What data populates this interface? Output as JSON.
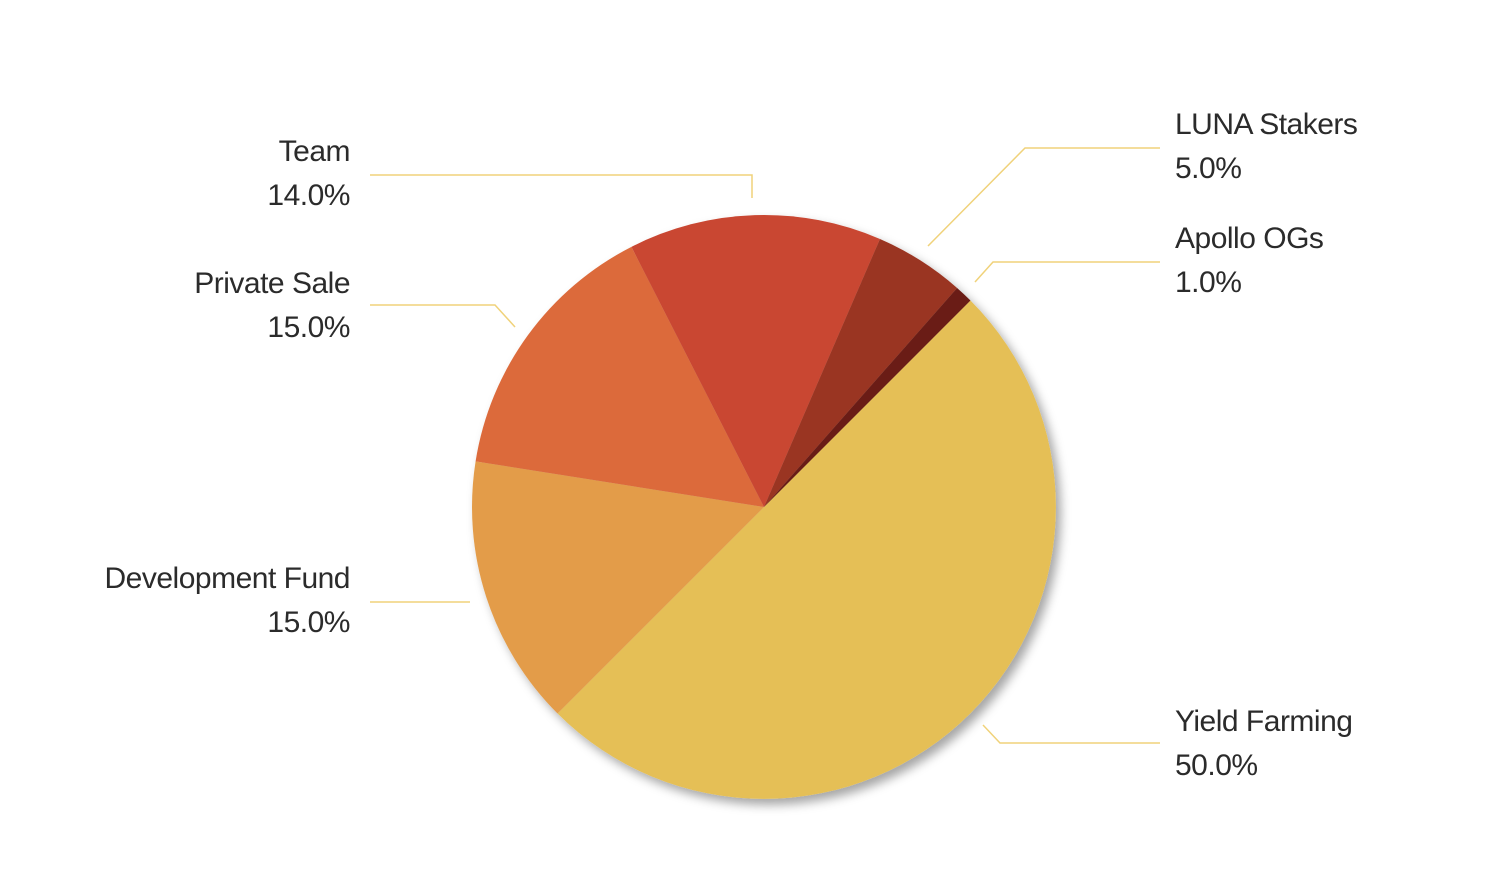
{
  "chart_data": {
    "type": "pie",
    "categories": [
      "Yield Farming",
      "Development Fund",
      "Private Sale",
      "Team",
      "LUNA Stakers",
      "Apollo OGs"
    ],
    "values": [
      50,
      15,
      15,
      14,
      5,
      1
    ],
    "value_labels": [
      "50.0%",
      "15.0%",
      "15.0%",
      "14.0%",
      "5.0%",
      "1.0%"
    ],
    "colors": [
      "#e5bf57",
      "#e39c4a",
      "#dc6a3a",
      "#c94631",
      "#9a3420",
      "#6b1f14"
    ]
  }
}
